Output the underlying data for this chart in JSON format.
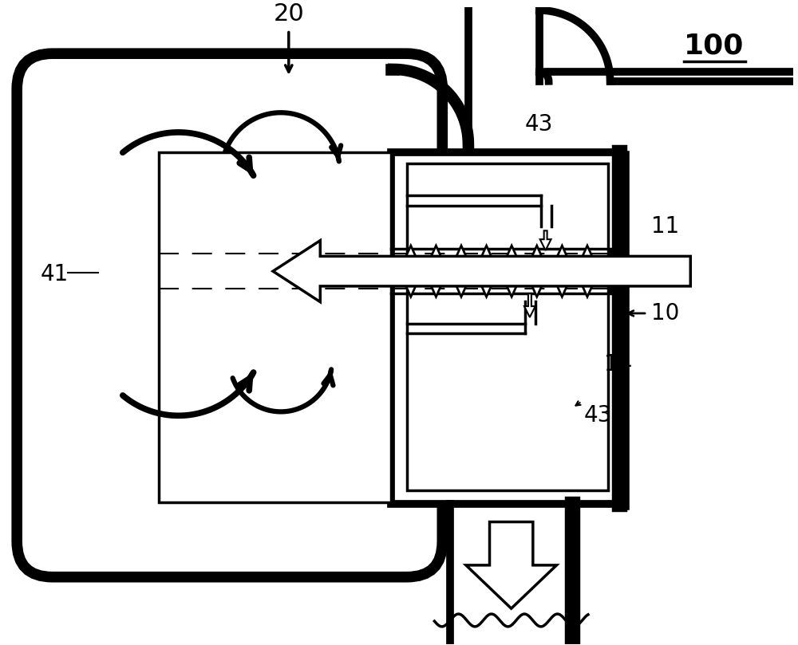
{
  "bg_color": "#ffffff",
  "line_color": "#000000",
  "lw_thick": 7,
  "lw_med": 2.5,
  "lw_thin": 1.5,
  "fig_w": 10.0,
  "fig_h": 8.09,
  "dpi": 100
}
